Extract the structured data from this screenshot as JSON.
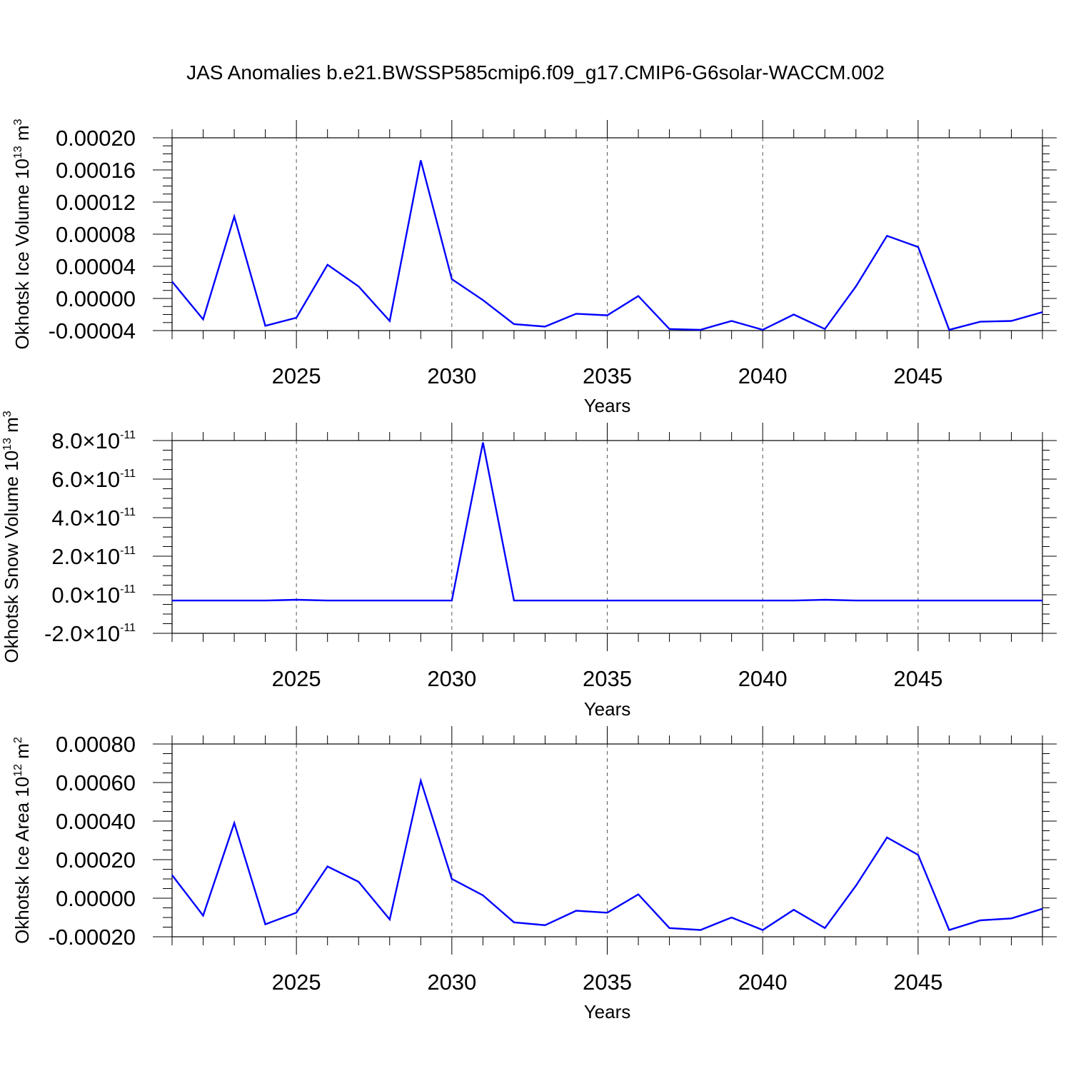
{
  "title": "JAS Anomalies b.e21.BWSSP585cmip6.f09_g17.CMIP6-G6solar-WACCM.002",
  "chart_data": [
    {
      "type": "line",
      "xlabel": "Years",
      "ylabel": "Okhotsk Ice Volume",
      "ylabel_unit": "10^13 m^3",
      "unit_base": "10",
      "unit_exp": "13",
      "unit_dim": "m",
      "unit_pow": "3",
      "xlim": [
        2021,
        2049
      ],
      "ylim": [
        -4e-05,
        0.0002
      ],
      "x_ticks": [
        2025,
        2030,
        2035,
        2040,
        2045
      ],
      "x_tick_labels": [
        "2025",
        "2030",
        "2035",
        "2040",
        "2045"
      ],
      "y_ticks": [
        -4e-05,
        0.0,
        4e-05,
        8e-05,
        0.00012,
        0.00016,
        0.0002
      ],
      "y_tick_labels": [
        "-0.00004",
        "0.00000",
        "0.00004",
        "0.00008",
        "0.00012",
        "0.00016",
        "0.00020"
      ],
      "grid": "dashed vertical at x ticks",
      "color": "#0000ff",
      "x": [
        2021,
        2022,
        2023,
        2024,
        2025,
        2026,
        2027,
        2028,
        2029,
        2030,
        2031,
        2032,
        2033,
        2034,
        2035,
        2036,
        2037,
        2038,
        2039,
        2040,
        2041,
        2042,
        2043,
        2044,
        2045,
        2046,
        2047,
        2048,
        2049
      ],
      "y": [
        2.1e-05,
        -2.6e-05,
        0.000102,
        -3.4e-05,
        -2.4e-05,
        4.2e-05,
        1.5e-05,
        -2.8e-05,
        0.000172,
        2.4e-05,
        -2e-06,
        -3.2e-05,
        -3.5e-05,
        -1.9e-05,
        -2.1e-05,
        3e-06,
        -3.8e-05,
        -3.9e-05,
        -2.8e-05,
        -3.9e-05,
        -2e-05,
        -3.8e-05,
        1.5e-05,
        7.8e-05,
        6.4e-05,
        -3.9e-05,
        -2.9e-05,
        -2.8e-05,
        -1.7e-05
      ]
    },
    {
      "type": "line",
      "xlabel": "Years",
      "ylabel": "Okhotsk Snow Volume",
      "ylabel_unit": "10^13 m^3",
      "unit_base": "10",
      "unit_exp": "13",
      "unit_dim": "m",
      "unit_pow": "3",
      "xlim": [
        2021,
        2049
      ],
      "ylim": [
        -2e-11,
        8e-11
      ],
      "x_ticks": [
        2025,
        2030,
        2035,
        2040,
        2045
      ],
      "x_tick_labels": [
        "2025",
        "2030",
        "2035",
        "2040",
        "2045"
      ],
      "y_ticks": [
        -2e-11,
        0.0,
        2e-11,
        4e-11,
        6e-11,
        8e-11
      ],
      "y_tick_mantissas": [
        "-2.0",
        "0.0",
        "2.0",
        "4.0",
        "6.0",
        "8.0"
      ],
      "y_tick_times": "×",
      "y_tick_base": "10",
      "y_tick_exp": "-11",
      "grid": "dashed vertical at x ticks",
      "color": "#0000ff",
      "x": [
        2021,
        2022,
        2023,
        2024,
        2025,
        2026,
        2027,
        2028,
        2029,
        2030,
        2031,
        2032,
        2033,
        2034,
        2035,
        2036,
        2037,
        2038,
        2039,
        2040,
        2041,
        2042,
        2043,
        2044,
        2045,
        2046,
        2047,
        2048,
        2049
      ],
      "y": [
        -3e-12,
        -3e-12,
        -3e-12,
        -3e-12,
        -2.6e-12,
        -3e-12,
        -3e-12,
        -3e-12,
        -3e-12,
        -3e-12,
        7.9e-11,
        -3e-12,
        -3e-12,
        -3e-12,
        -3e-12,
        -3e-12,
        -3e-12,
        -3e-12,
        -3e-12,
        -3e-12,
        -3e-12,
        -2.6e-12,
        -3e-12,
        -3e-12,
        -3e-12,
        -3e-12,
        -3e-12,
        -3e-12,
        -3e-12
      ]
    },
    {
      "type": "line",
      "xlabel": "Years",
      "ylabel": "Okhotsk Ice Area",
      "ylabel_unit": "10^12 m^2",
      "unit_base": "10",
      "unit_exp": "12",
      "unit_dim": "m",
      "unit_pow": "2",
      "xlim": [
        2021,
        2049
      ],
      "ylim": [
        -0.0002,
        0.0008
      ],
      "x_ticks": [
        2025,
        2030,
        2035,
        2040,
        2045
      ],
      "x_tick_labels": [
        "2025",
        "2030",
        "2035",
        "2040",
        "2045"
      ],
      "y_ticks": [
        -0.0002,
        0.0,
        0.0002,
        0.0004,
        0.0006,
        0.0008
      ],
      "y_tick_labels": [
        "-0.00020",
        "0.00000",
        "0.00020",
        "0.00040",
        "0.00060",
        "0.00080"
      ],
      "grid": "dashed vertical at x ticks",
      "color": "#0000ff",
      "x": [
        2021,
        2022,
        2023,
        2024,
        2025,
        2026,
        2027,
        2028,
        2029,
        2030,
        2031,
        2032,
        2033,
        2034,
        2035,
        2036,
        2037,
        2038,
        2039,
        2040,
        2041,
        2042,
        2043,
        2044,
        2045,
        2046,
        2047,
        2048,
        2049
      ],
      "y": [
        0.00012,
        -9e-05,
        0.00039,
        -0.000135,
        -7.5e-05,
        0.000165,
        8.5e-05,
        -0.00011,
        0.00061,
        0.0001,
        1.5e-05,
        -0.000125,
        -0.00014,
        -6.5e-05,
        -7.5e-05,
        2e-05,
        -0.000155,
        -0.000165,
        -0.0001,
        -0.000165,
        -6e-05,
        -0.000155,
        6.5e-05,
        0.000315,
        0.000225,
        -0.000165,
        -0.000115,
        -0.000105,
        -5.5e-05
      ]
    }
  ]
}
